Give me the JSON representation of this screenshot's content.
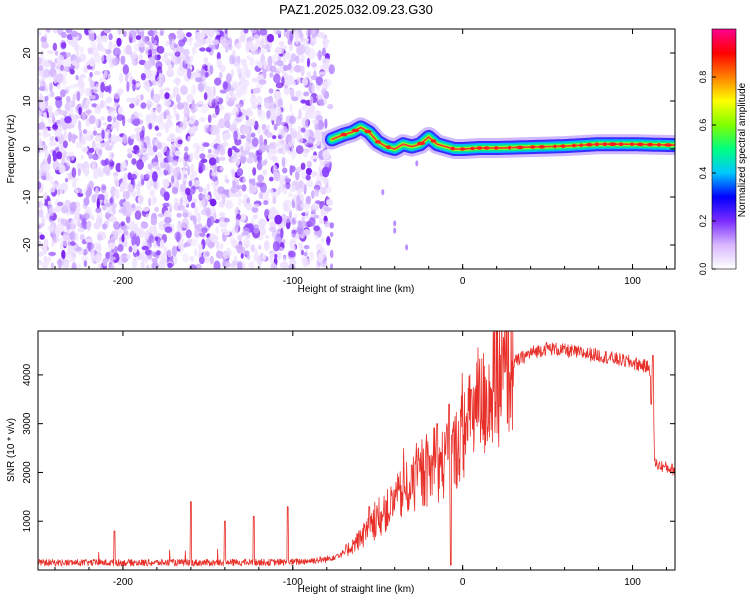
{
  "title": "PAZ1.2025.032.09.23.G30",
  "chart_data": [
    {
      "type": "heatmap",
      "xlabel": "Height of straight line (km)",
      "ylabel": "Frequency (Hz)",
      "xlim": [
        -250,
        125
      ],
      "ylim": [
        -25,
        25
      ],
      "xticks": [
        -200,
        -100,
        0,
        100
      ],
      "yticks": [
        -20,
        -10,
        0,
        10,
        20
      ],
      "colorbar": {
        "label": "Normalized spectral amplitude",
        "range": [
          0,
          1
        ],
        "ticks": [
          "0.0",
          "0.2",
          "0.4",
          "0.6",
          "0.8"
        ],
        "colors": [
          "#ffffff",
          "#d9b8ff",
          "#7b2cff",
          "#0000ff",
          "#00c8ff",
          "#00ff80",
          "#80ff00",
          "#ffff00",
          "#ff8000",
          "#ff0000",
          "#ff0090"
        ]
      },
      "noise_region_x": [
        -250,
        -77
      ],
      "signal_trace": {
        "x": [
          -77,
          -70,
          -65,
          -60,
          -55,
          -50,
          -45,
          -40,
          -35,
          -30,
          -25,
          -20,
          -15,
          -10,
          -5,
          0,
          10,
          20,
          40,
          60,
          80,
          100,
          125
        ],
        "y": [
          2,
          3,
          3.5,
          4.5,
          3.5,
          1.5,
          0.5,
          0,
          1,
          0.5,
          1,
          2.5,
          1,
          0.5,
          0,
          0,
          0.2,
          0.2,
          0.4,
          0.6,
          1,
          1,
          0.8
        ]
      }
    },
    {
      "type": "line",
      "xlabel": "Height of straight line (km)",
      "ylabel": "SNR (10 * v/v)",
      "xlim": [
        -250,
        125
      ],
      "ylim": [
        0,
        4900
      ],
      "xticks": [
        -200,
        -100,
        0,
        100
      ],
      "yticks": [
        1000,
        2000,
        3000,
        4000
      ],
      "color": "#e8302a",
      "envelope": {
        "x": [
          -250,
          -200,
          -150,
          -100,
          -80,
          -70,
          -60,
          -50,
          -40,
          -30,
          -20,
          -10,
          -5,
          0,
          10,
          20,
          30,
          40,
          50,
          60,
          80,
          100,
          110,
          112,
          113,
          115,
          125
        ],
        "y": [
          150,
          150,
          150,
          160,
          220,
          350,
          650,
          1000,
          1400,
          1750,
          2000,
          2200,
          2400,
          2800,
          3300,
          3800,
          4250,
          4450,
          4550,
          4500,
          4400,
          4250,
          4150,
          3900,
          2200,
          2150,
          2050
        ]
      },
      "spikes": [
        {
          "x": -160,
          "y": 1400
        },
        {
          "x": -140,
          "y": 1000
        },
        {
          "x": -123,
          "y": 1100
        },
        {
          "x": -103,
          "y": 1300
        },
        {
          "x": -205,
          "y": 800
        },
        {
          "x": -55,
          "y": 1300
        },
        {
          "x": -30,
          "y": 2150
        },
        {
          "x": -15,
          "y": 3000
        },
        {
          "x": -8,
          "y": 3400
        },
        {
          "x": 5,
          "y": 3700
        },
        {
          "x": -7,
          "y": 100
        },
        {
          "x": 112,
          "y": 4400
        },
        {
          "x": 111,
          "y": 3400
        }
      ]
    }
  ]
}
